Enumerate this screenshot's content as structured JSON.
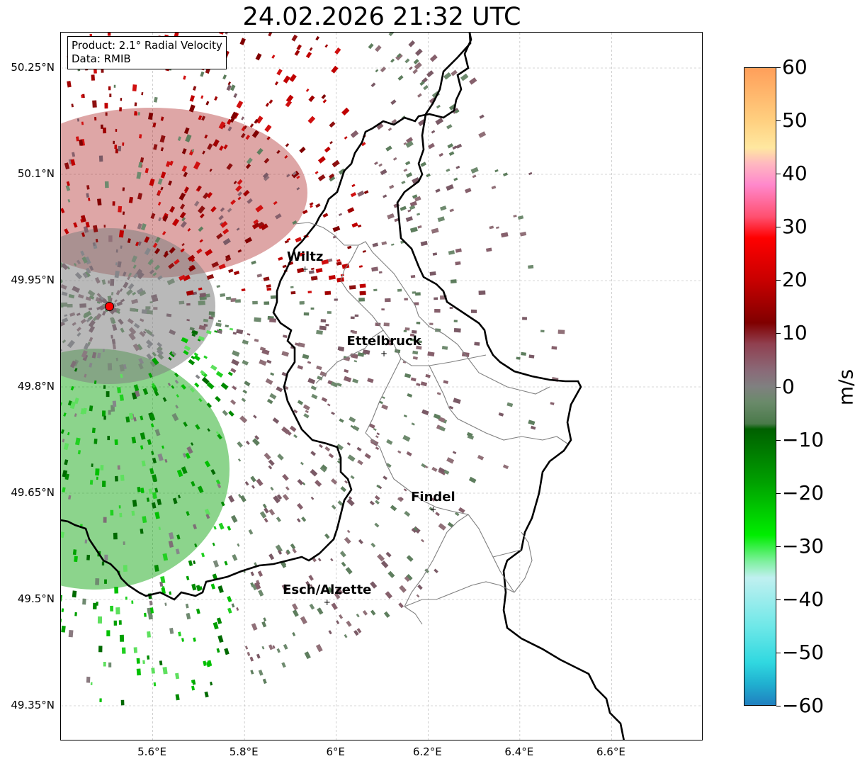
{
  "title": "24.02.2026 21:32 UTC",
  "info": {
    "product": "Product: 2.1° Radial Velocity",
    "data": "Data: RMIB"
  },
  "map": {
    "lon_range": [
      5.4,
      6.8
    ],
    "lat_range": [
      49.3,
      50.3
    ],
    "grid": true,
    "lon_ticks": [
      {
        "value": 5.6,
        "label": "5.6°E"
      },
      {
        "value": 5.8,
        "label": "5.8°E"
      },
      {
        "value": 6.0,
        "label": "6°E"
      },
      {
        "value": 6.2,
        "label": "6.2°E"
      },
      {
        "value": 6.4,
        "label": "6.4°E"
      },
      {
        "value": 6.6,
        "label": "6.6°E"
      }
    ],
    "lat_ticks": [
      {
        "value": 50.25,
        "label": "50.25°N"
      },
      {
        "value": 50.1,
        "label": "50.1°N"
      },
      {
        "value": 49.95,
        "label": "49.95°N"
      },
      {
        "value": 49.8,
        "label": "49.8°N"
      },
      {
        "value": 49.65,
        "label": "49.65°N"
      },
      {
        "value": 49.5,
        "label": "49.5°N"
      },
      {
        "value": 49.35,
        "label": "49.35°N"
      }
    ],
    "radar_site": {
      "lon": 5.505,
      "lat": 49.914
    },
    "cities": [
      {
        "name": "Wiltz",
        "lon": 5.932,
        "lat": 49.966
      },
      {
        "name": "Ettelbruck",
        "lon": 6.104,
        "lat": 49.847
      },
      {
        "name": "Findel",
        "lon": 6.211,
        "lat": 49.627
      },
      {
        "name": "Esch/Alzette",
        "lon": 5.98,
        "lat": 49.496
      }
    ]
  },
  "colorbar": {
    "label": "m/s",
    "range": [
      -60,
      60
    ],
    "ticks": [
      "60",
      "50",
      "40",
      "30",
      "20",
      "10",
      "0",
      "−10",
      "−20",
      "−30",
      "−40",
      "−50",
      "−60"
    ],
    "stops": [
      {
        "v": 60,
        "color": "#ff9f5a"
      },
      {
        "v": 50,
        "color": "#ffd080"
      },
      {
        "v": 45,
        "color": "#ffe8a0"
      },
      {
        "v": 42,
        "color": "#ffb8c0"
      },
      {
        "v": 38,
        "color": "#ff88cc"
      },
      {
        "v": 32,
        "color": "#ff5070"
      },
      {
        "v": 28,
        "color": "#ff0000"
      },
      {
        "v": 20,
        "color": "#c80000"
      },
      {
        "v": 12,
        "color": "#800000"
      },
      {
        "v": 8,
        "color": "#904050"
      },
      {
        "v": 3,
        "color": "#8a6a78"
      },
      {
        "v": 0,
        "color": "#808080"
      },
      {
        "v": -3,
        "color": "#6a8a6a"
      },
      {
        "v": -7,
        "color": "#4a7a4a"
      },
      {
        "v": -8,
        "color": "#006000"
      },
      {
        "v": -18,
        "color": "#00a000"
      },
      {
        "v": -28,
        "color": "#00ee00"
      },
      {
        "v": -33,
        "color": "#80f0a0"
      },
      {
        "v": -36,
        "color": "#c0f0f0"
      },
      {
        "v": -45,
        "color": "#70e8e8"
      },
      {
        "v": -52,
        "color": "#30d8e0"
      },
      {
        "v": -56,
        "color": "#20b0d0"
      },
      {
        "v": -60,
        "color": "#2080c0"
      }
    ]
  }
}
